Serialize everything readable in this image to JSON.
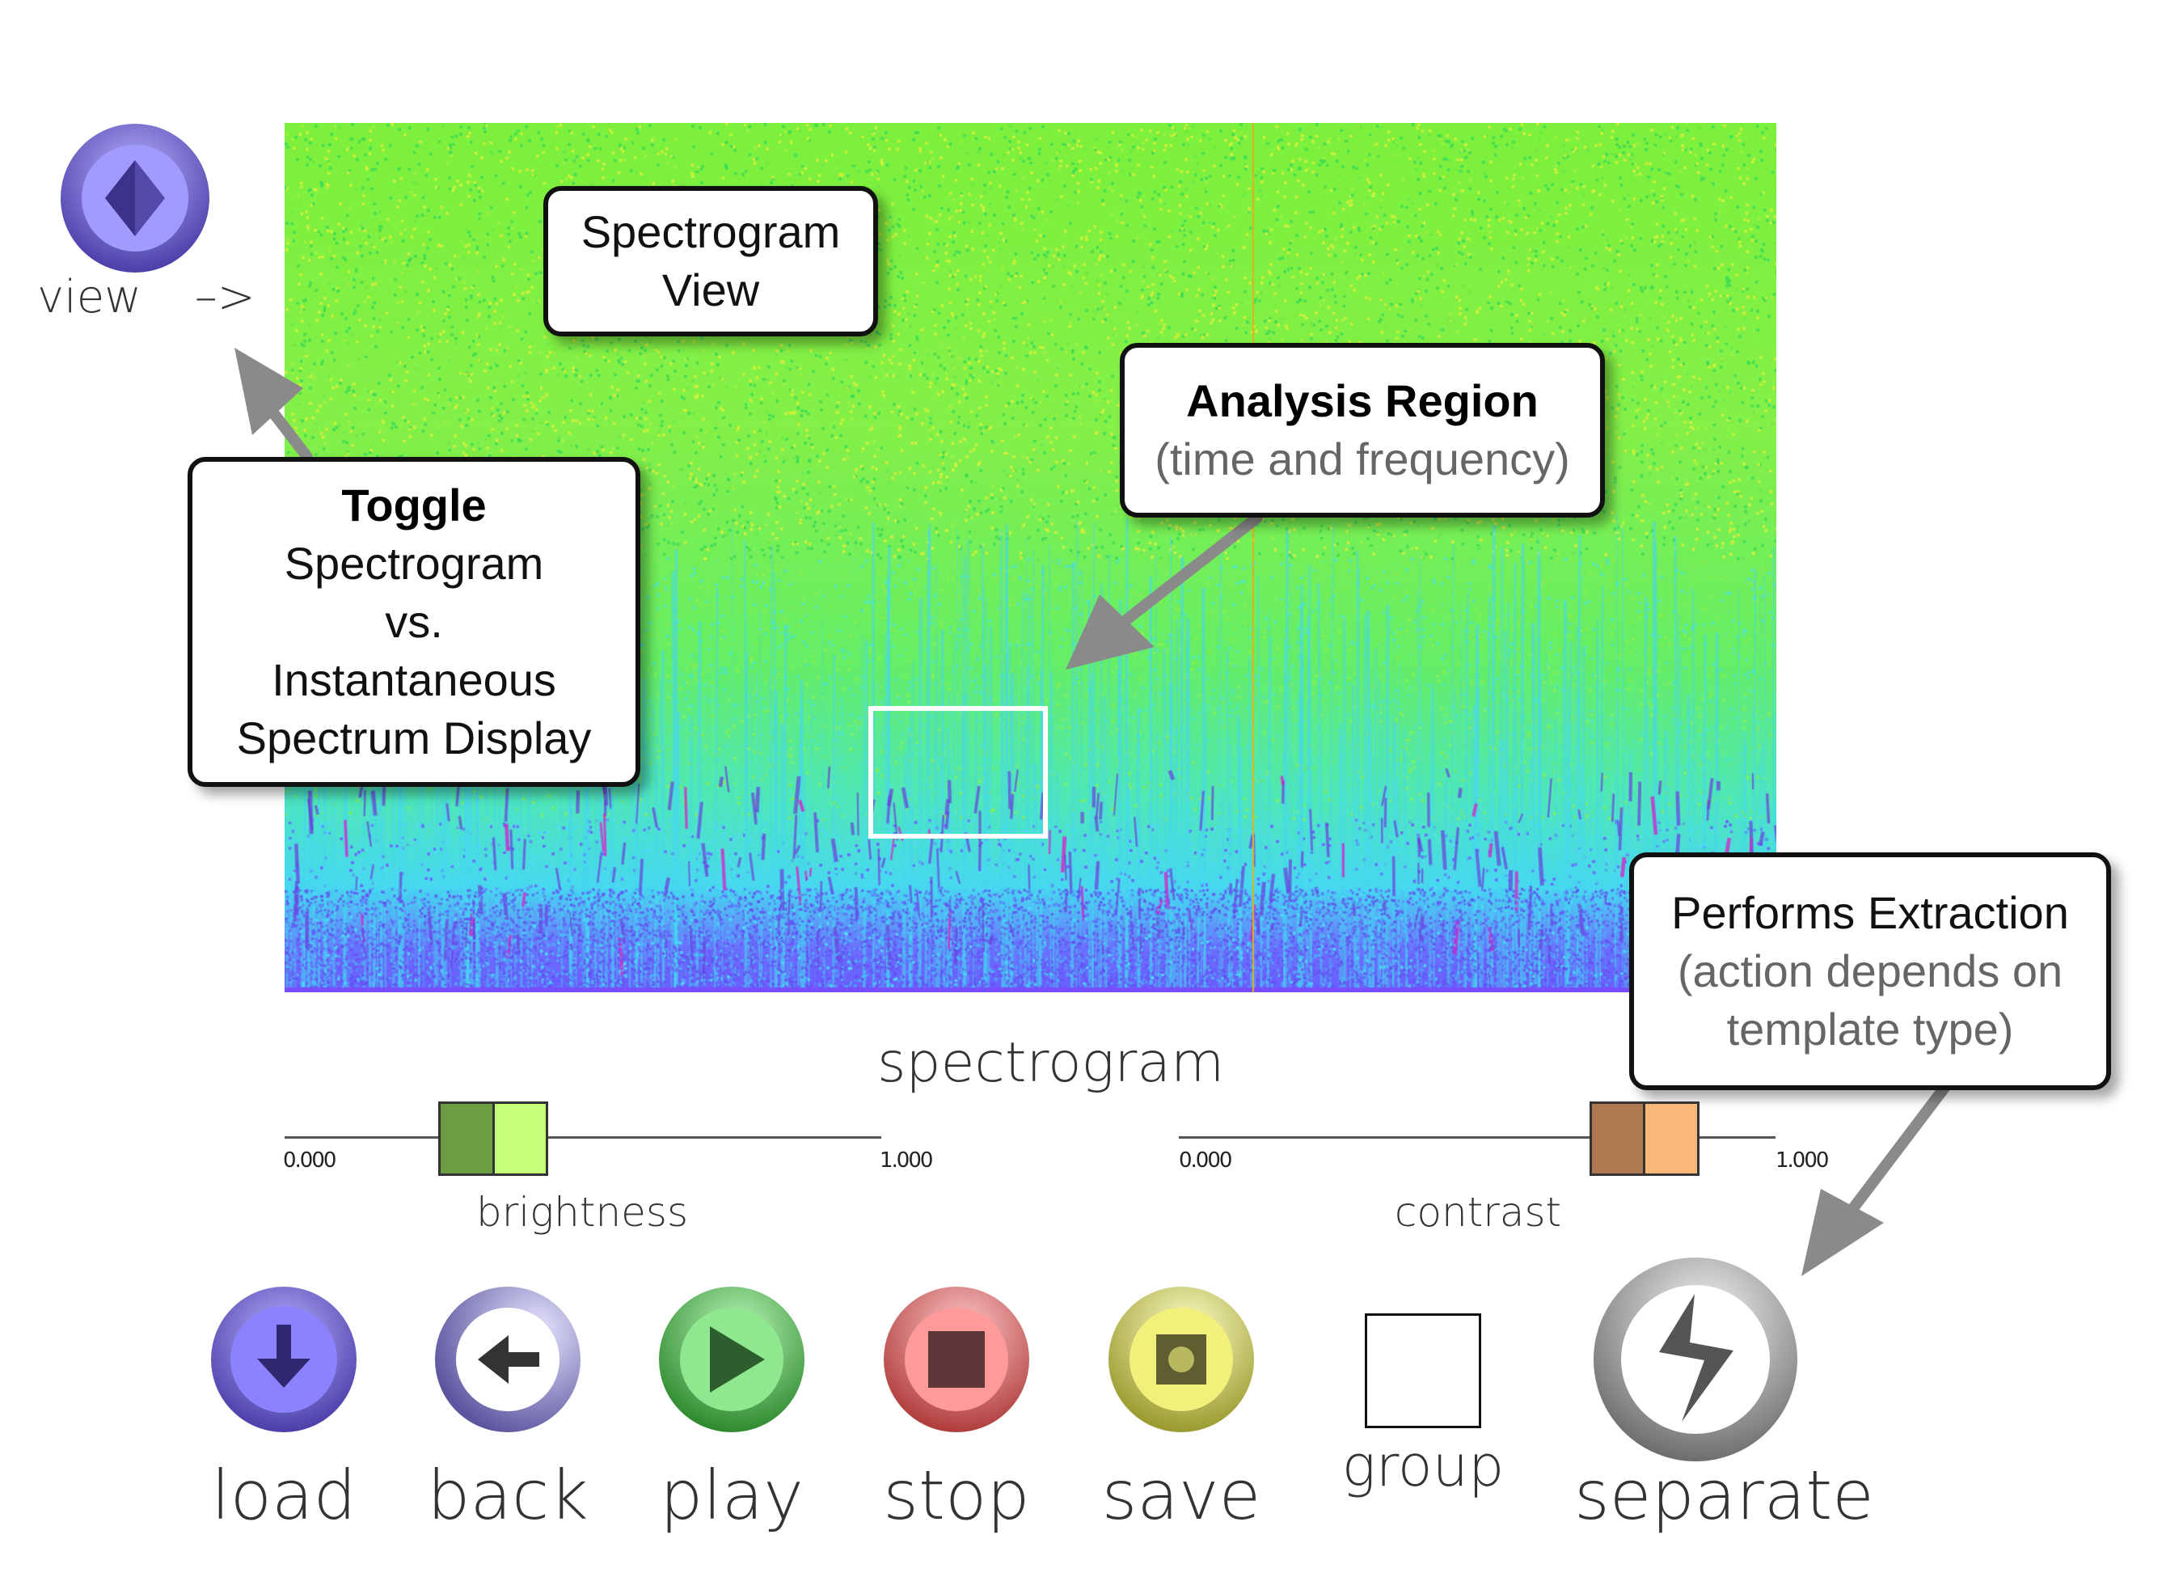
{
  "view_control": {
    "label": "view",
    "arrow_text": "–>"
  },
  "callouts": {
    "spectrogram_view": {
      "line1": "Spectrogram",
      "line2": "View"
    },
    "analysis_region": {
      "title": "Analysis Region",
      "subtitle": "(time and frequency)"
    },
    "toggle": {
      "title": "Toggle",
      "line1": "Spectrogram",
      "line2": "vs.",
      "line3": "Instantaneous",
      "line4": "Spectrum Display"
    },
    "performs_extraction": {
      "title": "Performs Extraction",
      "subtitle1": "(action depends on",
      "subtitle2": "template type)"
    }
  },
  "display_title": "spectrogram",
  "sliders": {
    "brightness": {
      "label": "brightness",
      "min_label": "0.000",
      "max_label": "1.000",
      "value": 0.35,
      "color_dark": "#6b9e43",
      "color_light": "#c6ff7a"
    },
    "contrast": {
      "label": "contrast",
      "min_label": "0.000",
      "max_label": "1.000",
      "value": 0.78,
      "color_dark": "#b07850",
      "color_light": "#f8b878"
    }
  },
  "buttons": {
    "load": {
      "label": "load",
      "icon": "down-arrow-icon",
      "color": "#8a82ff"
    },
    "back": {
      "label": "back",
      "icon": "left-arrow-icon",
      "color": "#b8b4f0"
    },
    "play": {
      "label": "play",
      "icon": "play-icon",
      "color": "#6cd66c"
    },
    "stop": {
      "label": "stop",
      "icon": "stop-icon",
      "color": "#f08c8c"
    },
    "save": {
      "label": "save",
      "icon": "save-icon",
      "color": "#e8e87a"
    },
    "group": {
      "label": "group",
      "checked": false
    },
    "separate": {
      "label": "separate",
      "icon": "lightning-icon",
      "color": "#c8c8c8"
    }
  },
  "colors": {
    "spectrogram_top": "#7cf03c",
    "spectrogram_bottom": "#6a5cff",
    "cursor_line": "#e0b020",
    "region_box": "#ffffff"
  }
}
